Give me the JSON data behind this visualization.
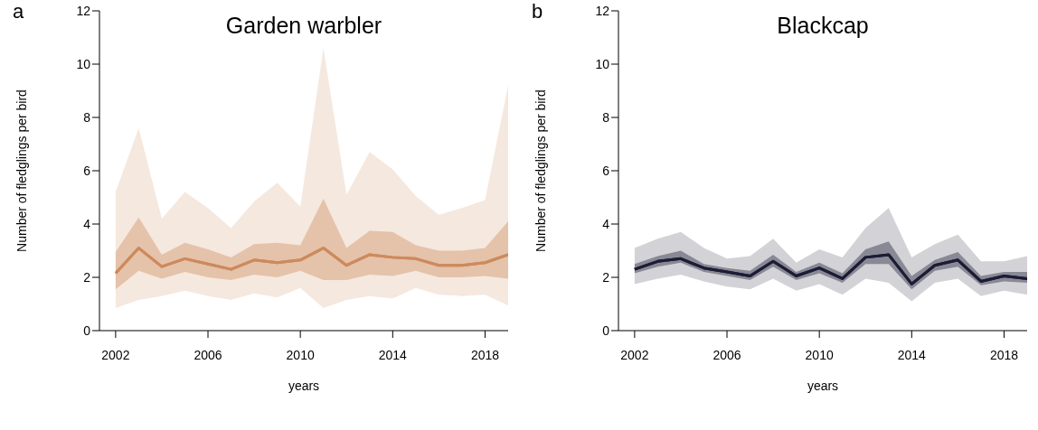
{
  "chart_data": [
    {
      "type": "line",
      "title": "Garden warbler",
      "xlabel": "years",
      "ylabel": "Number of fledglings per bird",
      "annotations": [
        "a"
      ],
      "x": [
        2002,
        2003,
        2004,
        2005,
        2006,
        2007,
        2008,
        2009,
        2010,
        2011,
        2012,
        2013,
        2014,
        2015,
        2016,
        2017,
        2018,
        2019
      ],
      "xlim": [
        2001.3,
        2019
      ],
      "xticks": [
        2002,
        2006,
        2010,
        2014,
        2018
      ],
      "ylim": [
        0,
        12
      ],
      "yticks": [
        0,
        2,
        4,
        6,
        8,
        10,
        12
      ],
      "grid": false,
      "series": [
        {
          "color": "#cd8a5c",
          "values": [
            2.15,
            3.1,
            2.4,
            2.7,
            2.5,
            2.3,
            2.65,
            2.55,
            2.65,
            3.1,
            2.45,
            2.85,
            2.75,
            2.7,
            2.45,
            2.45,
            2.55,
            2.85
          ],
          "upper": [
            2.95,
            4.25,
            2.85,
            3.3,
            3.05,
            2.75,
            3.25,
            3.3,
            3.2,
            4.95,
            3.1,
            3.75,
            3.7,
            3.2,
            3.0,
            3.0,
            3.1,
            4.1
          ],
          "lower": [
            1.55,
            2.25,
            1.95,
            2.2,
            2.0,
            1.9,
            2.1,
            2.0,
            2.25,
            1.9,
            1.9,
            2.1,
            2.05,
            2.25,
            2.0,
            2.0,
            2.05,
            1.95
          ]
        },
        {
          "color": "#cd8a5c",
          "values": [
            2.15,
            3.1,
            2.4,
            2.7,
            2.5,
            2.3,
            2.65,
            2.55,
            2.65,
            3.1,
            2.45,
            2.85,
            2.75,
            2.7,
            2.45,
            2.45,
            2.55,
            2.85
          ],
          "upper": [
            5.2,
            7.6,
            4.2,
            5.2,
            4.6,
            3.85,
            4.85,
            5.55,
            4.65,
            10.6,
            5.1,
            6.7,
            6.05,
            5.05,
            4.35,
            4.6,
            4.9,
            9.2
          ],
          "lower": [
            0.85,
            1.15,
            1.3,
            1.5,
            1.3,
            1.15,
            1.4,
            1.25,
            1.6,
            0.85,
            1.15,
            1.3,
            1.2,
            1.6,
            1.35,
            1.3,
            1.35,
            0.95
          ]
        }
      ]
    },
    {
      "type": "line",
      "title": "Blackcap",
      "xlabel": "years",
      "ylabel": "Number of fledglings per bird",
      "annotations": [
        "b"
      ],
      "x": [
        2002,
        2003,
        2004,
        2005,
        2006,
        2007,
        2008,
        2009,
        2010,
        2011,
        2012,
        2013,
        2014,
        2015,
        2016,
        2017,
        2018,
        2019
      ],
      "xlim": [
        2001.3,
        2019
      ],
      "xticks": [
        2002,
        2006,
        2010,
        2014,
        2018
      ],
      "ylim": [
        0,
        12
      ],
      "yticks": [
        0,
        2,
        4,
        6,
        8,
        10,
        12
      ],
      "grid": false,
      "series": [
        {
          "color": "#1c1c35",
          "values": [
            2.3,
            2.6,
            2.7,
            2.35,
            2.2,
            2.05,
            2.6,
            2.05,
            2.35,
            1.95,
            2.75,
            2.85,
            1.75,
            2.45,
            2.65,
            1.85,
            2.05,
            1.95
          ],
          "upper": [
            2.5,
            2.8,
            3.0,
            2.5,
            2.35,
            2.25,
            2.85,
            2.2,
            2.55,
            2.15,
            3.05,
            3.35,
            2.05,
            2.65,
            2.95,
            2.05,
            2.2,
            2.2
          ],
          "lower": [
            2.15,
            2.4,
            2.55,
            2.2,
            2.05,
            1.9,
            2.4,
            1.9,
            2.15,
            1.8,
            2.5,
            2.5,
            1.55,
            2.25,
            2.4,
            1.7,
            1.85,
            1.8
          ]
        },
        {
          "color": "#1c1c35",
          "values": [
            2.3,
            2.6,
            2.7,
            2.35,
            2.2,
            2.05,
            2.6,
            2.05,
            2.35,
            1.95,
            2.75,
            2.85,
            1.75,
            2.45,
            2.65,
            1.85,
            2.05,
            1.95
          ],
          "upper": [
            3.1,
            3.45,
            3.7,
            3.1,
            2.7,
            2.8,
            3.45,
            2.55,
            3.05,
            2.75,
            3.85,
            4.6,
            2.75,
            3.25,
            3.6,
            2.6,
            2.6,
            2.8
          ],
          "lower": [
            1.75,
            1.95,
            2.1,
            1.85,
            1.65,
            1.55,
            1.95,
            1.5,
            1.75,
            1.35,
            1.95,
            1.8,
            1.1,
            1.8,
            1.95,
            1.3,
            1.5,
            1.35
          ]
        }
      ]
    }
  ]
}
